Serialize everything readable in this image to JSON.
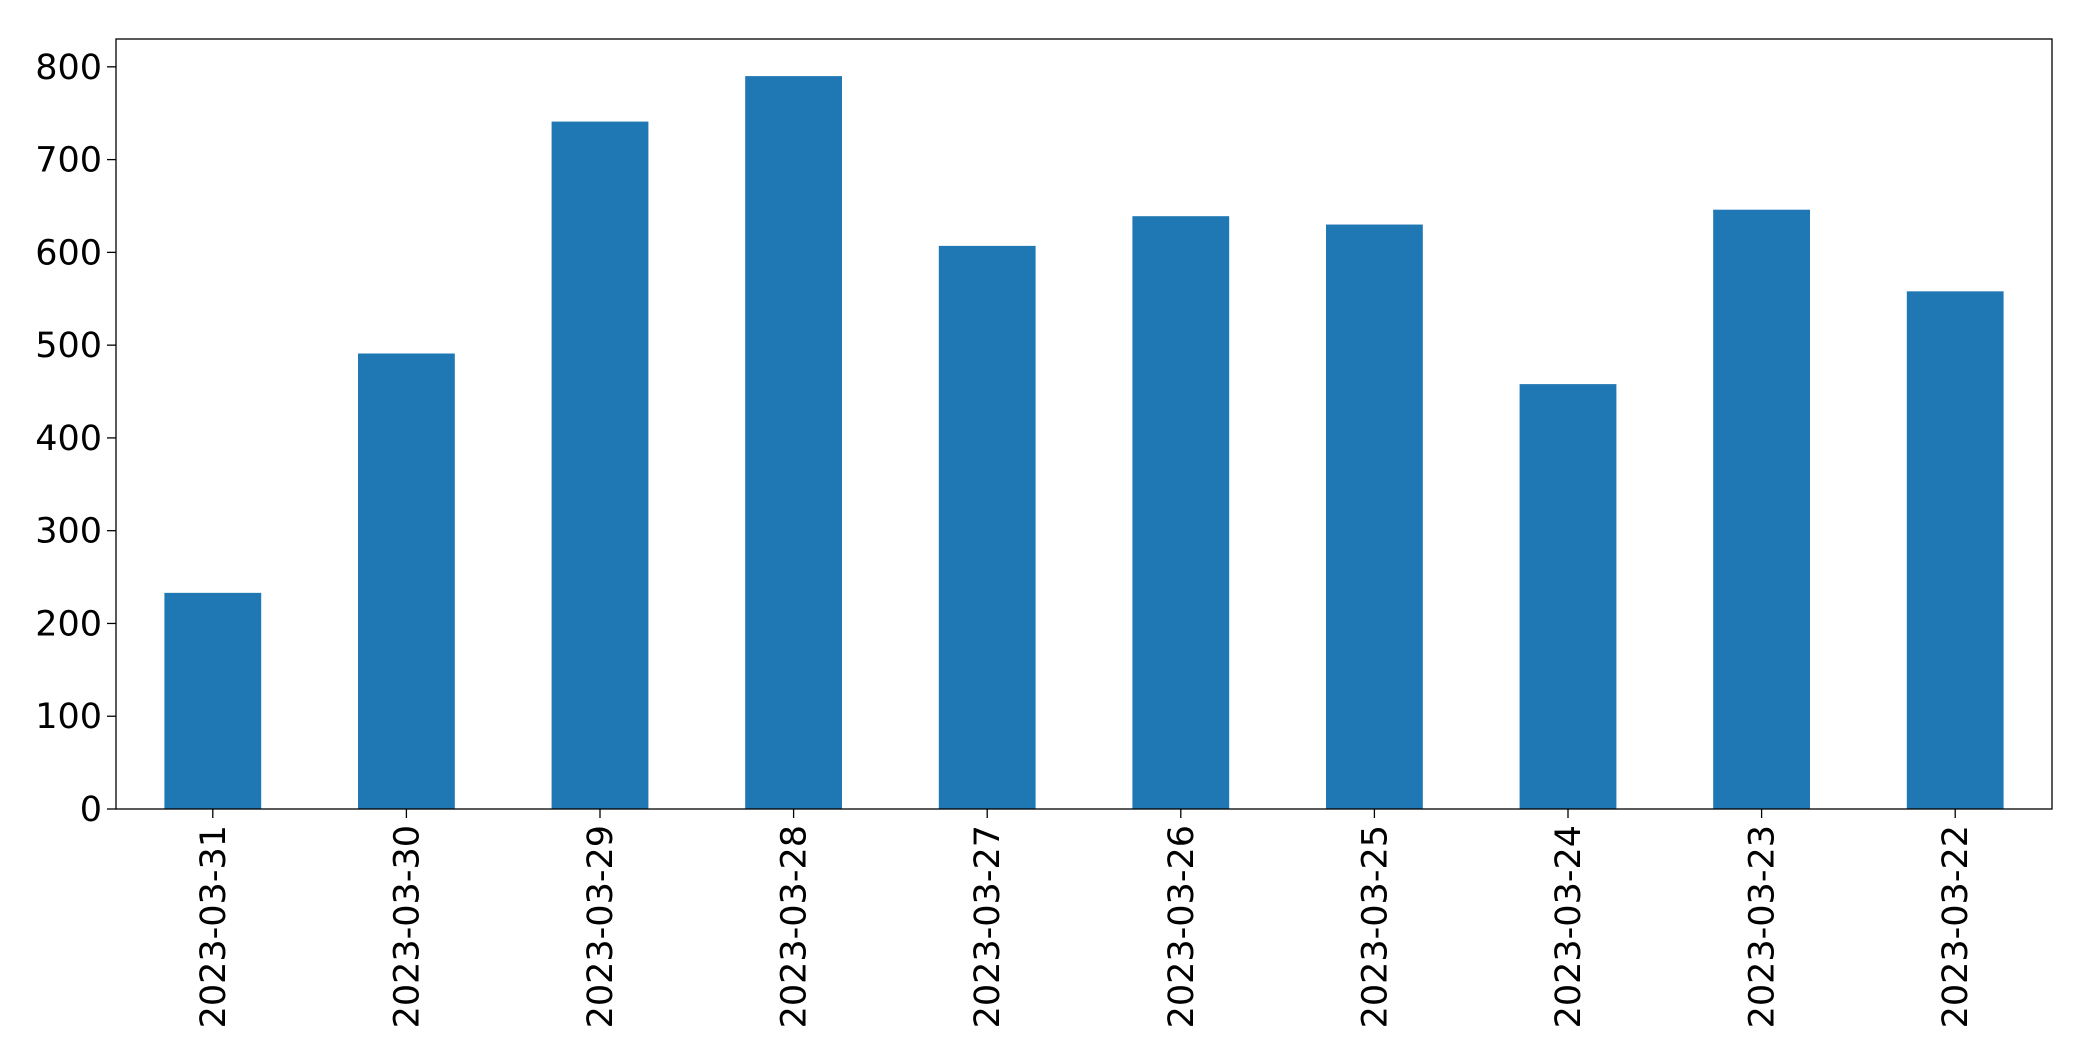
{
  "chart_data": {
    "type": "bar",
    "categories": [
      "2023-03-31",
      "2023-03-30",
      "2023-03-29",
      "2023-03-28",
      "2023-03-27",
      "2023-03-26",
      "2023-03-25",
      "2023-03-24",
      "2023-03-23",
      "2023-03-22"
    ],
    "values": [
      233,
      491,
      741,
      790,
      607,
      639,
      630,
      458,
      646,
      558
    ],
    "color": "#1f77b4",
    "ylim": [
      0,
      830
    ],
    "yticks": [
      0,
      100,
      200,
      300,
      400,
      500,
      600,
      700,
      800
    ],
    "grid": false
  }
}
